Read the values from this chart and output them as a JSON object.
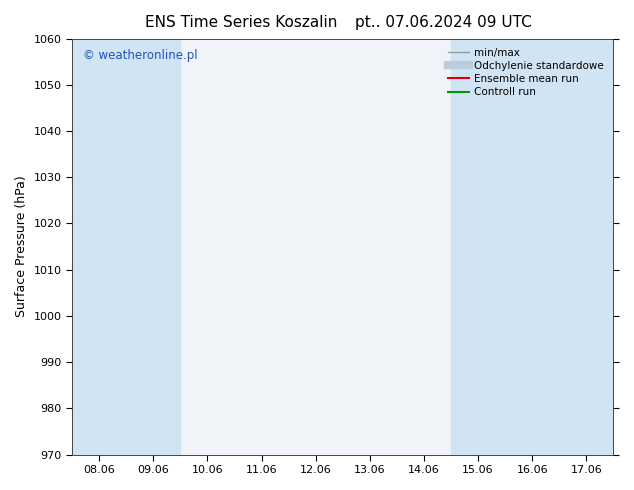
{
  "title_left": "ENS Time Series Koszalin",
  "title_right": "pt.. 07.06.2024 09 UTC",
  "ylabel": "Surface Pressure (hPa)",
  "watermark": "© weatheronline.pl",
  "ylim": [
    970,
    1060
  ],
  "yticks": [
    970,
    980,
    990,
    1000,
    1010,
    1020,
    1030,
    1040,
    1050,
    1060
  ],
  "x_labels": [
    "08.06",
    "09.06",
    "10.06",
    "11.06",
    "12.06",
    "13.06",
    "14.06",
    "15.06",
    "16.06",
    "17.06"
  ],
  "x_values": [
    0,
    1,
    2,
    3,
    4,
    5,
    6,
    7,
    8,
    9
  ],
  "fig_bg_color": "#ffffff",
  "plot_bg_color": "#f0f4f8",
  "shaded_columns": [
    0,
    1,
    7,
    8,
    9
  ],
  "shaded_color": "#d0e4f4",
  "legend_entries": [
    "min/max",
    "Odchylenie standardowe",
    "Ensemble mean run",
    "Controll run"
  ],
  "legend_colors_line": [
    "#999999",
    "#bbccdd",
    "#dd0000",
    "#009900"
  ],
  "legend_lw": [
    1.0,
    6.0,
    1.5,
    1.5
  ],
  "title_fontsize": 11,
  "tick_fontsize": 8,
  "ylabel_fontsize": 9,
  "watermark_color": "#2255bb"
}
